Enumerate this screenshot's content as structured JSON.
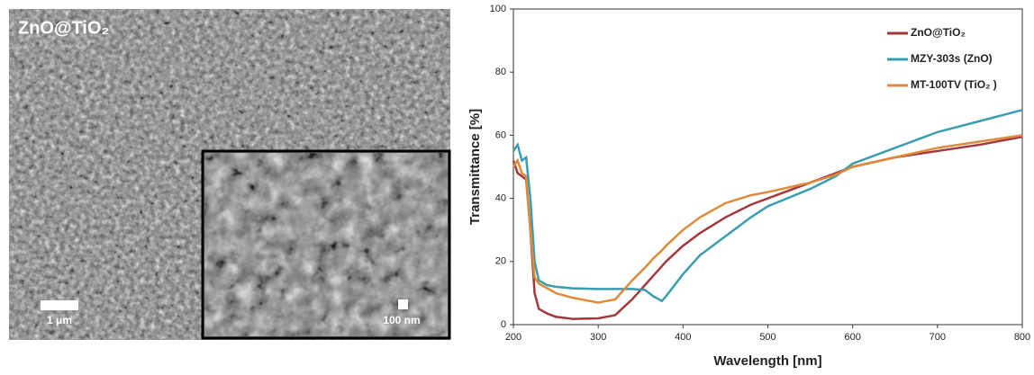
{
  "image": {
    "title": "ZnO@TiO₂",
    "scale_bar": "1 μm",
    "inset_scale_bar": "100 nm"
  },
  "chart_data": {
    "type": "line",
    "xlabel": "Wavelength [nm]",
    "ylabel": "Transmittance [%]",
    "x": [
      200,
      205,
      210,
      215,
      220,
      225,
      230,
      240,
      250,
      270,
      300,
      320,
      340,
      355,
      365,
      375,
      380,
      400,
      420,
      450,
      480,
      500,
      550,
      580,
      600,
      650,
      700,
      750,
      800
    ],
    "series": [
      {
        "name": "ZnO@TiO₂",
        "color": "#a2393e",
        "values": [
          52,
          48,
          47,
          46,
          30,
          10,
          5,
          3.5,
          2.5,
          1.8,
          2,
          3,
          8,
          12.5,
          15.5,
          18.5,
          20,
          25,
          29,
          34,
          38,
          40,
          45,
          48,
          50,
          53,
          55,
          57,
          59.5
        ]
      },
      {
        "name": "MZY-303s (ZnO)",
        "color": "#3a9db0",
        "values": [
          55,
          57,
          52,
          53,
          40,
          20,
          14,
          12.5,
          12,
          11.5,
          11.3,
          11.3,
          11.3,
          11,
          9,
          7.5,
          9,
          16,
          22,
          28,
          34,
          37.5,
          43,
          47,
          51,
          56,
          61,
          64.5,
          68
        ]
      },
      {
        "name": "MT-100TV (TiO₂ )",
        "color": "#e08a3c",
        "values": [
          50,
          52,
          48,
          47,
          30,
          15,
          13,
          11.5,
          10,
          8.5,
          7,
          8,
          14,
          18,
          21,
          23.5,
          25,
          30,
          34,
          38.5,
          41,
          42,
          45,
          47.5,
          50,
          53,
          56,
          58,
          60
        ]
      }
    ],
    "xlim": [
      200,
      800
    ],
    "xticks": [
      200,
      300,
      400,
      500,
      600,
      700,
      800
    ],
    "ylim": [
      0,
      100
    ],
    "yticks": [
      0,
      20,
      40,
      60,
      80,
      100
    ],
    "legend": "upper right"
  }
}
